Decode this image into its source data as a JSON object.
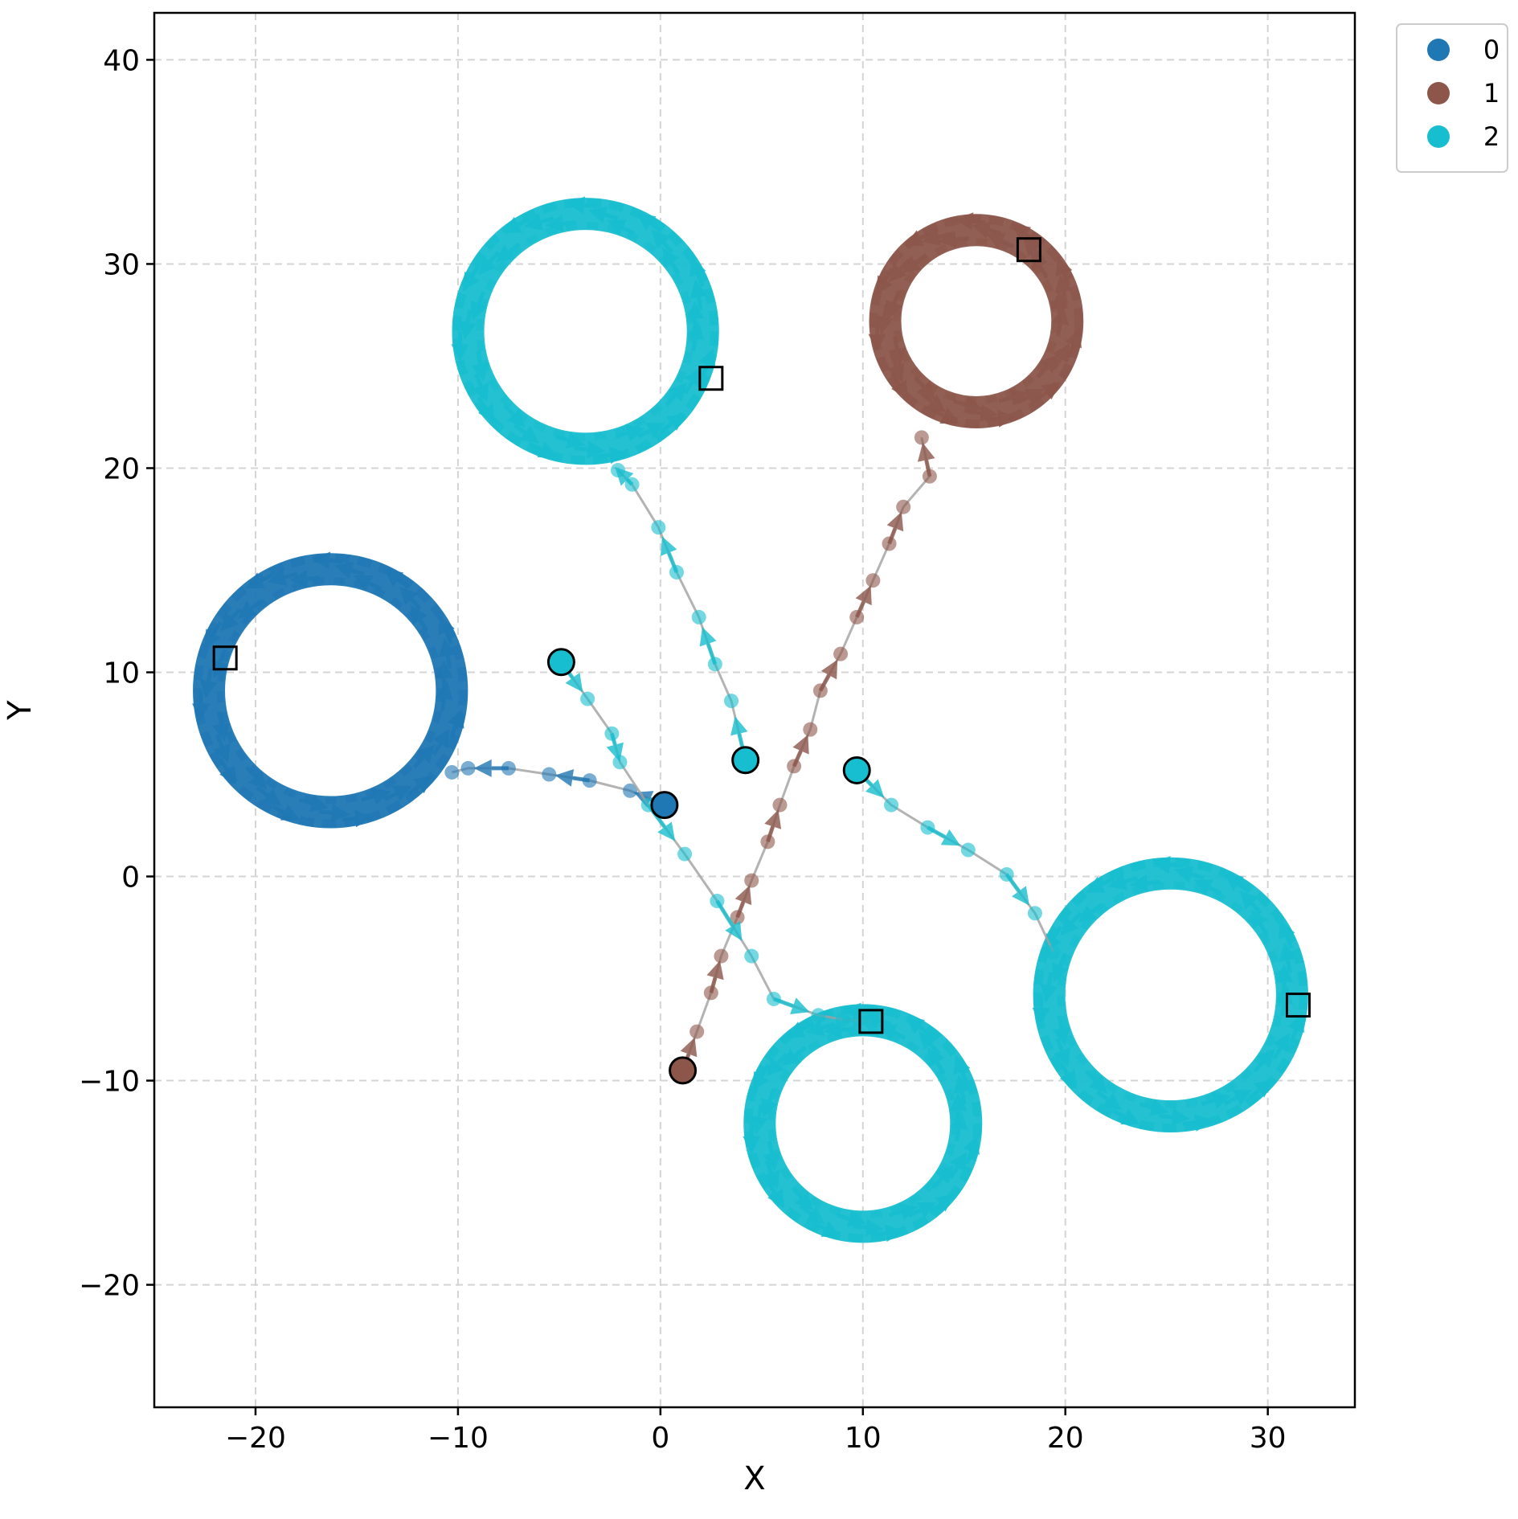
{
  "chart_data": {
    "type": "scatter",
    "xlabel": "X",
    "ylabel": "Y",
    "xlim": [
      -25,
      34.3
    ],
    "ylim": [
      -26,
      42.3
    ],
    "xticks": [
      -20,
      -10,
      0,
      10,
      20,
      30
    ],
    "yticks": [
      -20,
      -10,
      0,
      10,
      20,
      30,
      40
    ],
    "xtick_labels": [
      "−20",
      "−10",
      "0",
      "10",
      "20",
      "30"
    ],
    "ytick_labels": [
      "−20",
      "−10",
      "0",
      "10",
      "20",
      "30",
      "40"
    ],
    "grid": true,
    "legend_position": "outside-top-right",
    "legend": [
      {
        "label": "0",
        "color": "#1f77b4"
      },
      {
        "label": "1",
        "color": "#8c564b"
      },
      {
        "label": "2",
        "color": "#17becf"
      }
    ],
    "orbits": [
      {
        "group": 0,
        "center": [
          -16.3,
          9.1
        ],
        "radius": 6.0
      },
      {
        "group": 1,
        "center": [
          15.6,
          27.2
        ],
        "radius": 4.5
      },
      {
        "group": 2,
        "center": [
          -3.7,
          26.7
        ],
        "radius": 5.8
      },
      {
        "group": 2,
        "center": [
          25.2,
          -5.8
        ],
        "radius": 6.0
      },
      {
        "group": 2,
        "center": [
          10.0,
          -12.1
        ],
        "radius": 5.1
      }
    ],
    "trajectories": [
      {
        "group": 0,
        "start": [
          0.2,
          3.5
        ],
        "end": [
          -21.5,
          10.7
        ],
        "points": [
          [
            0.2,
            3.5
          ],
          [
            -1.5,
            4.2
          ],
          [
            -3.5,
            4.7
          ],
          [
            -5.5,
            5.0
          ],
          [
            -7.5,
            5.3
          ],
          [
            -9.5,
            5.3
          ],
          [
            -10.3,
            5.1
          ]
        ]
      },
      {
        "group": 1,
        "start": [
          1.1,
          -9.5
        ],
        "end": [
          18.2,
          30.7
        ],
        "points": [
          [
            1.1,
            -9.5
          ],
          [
            1.8,
            -7.6
          ],
          [
            2.5,
            -5.7
          ],
          [
            3.0,
            -3.9
          ],
          [
            3.8,
            -2.0
          ],
          [
            4.5,
            -0.2
          ],
          [
            5.3,
            1.7
          ],
          [
            5.9,
            3.5
          ],
          [
            6.6,
            5.4
          ],
          [
            7.4,
            7.2
          ],
          [
            7.9,
            9.1
          ],
          [
            8.9,
            10.9
          ],
          [
            9.7,
            12.7
          ],
          [
            10.5,
            14.5
          ],
          [
            11.3,
            16.3
          ],
          [
            12.0,
            18.1
          ],
          [
            13.3,
            19.6
          ],
          [
            12.9,
            21.5
          ]
        ]
      },
      {
        "group": 2,
        "start": [
          -4.9,
          10.5
        ],
        "end": [
          10.4,
          -7.1
        ],
        "points": [
          [
            -4.9,
            10.5
          ],
          [
            -3.6,
            8.7
          ],
          [
            -2.4,
            7.0
          ],
          [
            -2.0,
            5.6
          ],
          [
            -0.6,
            3.5
          ],
          [
            1.2,
            1.1
          ],
          [
            2.8,
            -1.2
          ],
          [
            4.5,
            -3.9
          ],
          [
            5.6,
            -6.0
          ],
          [
            7.8,
            -6.8
          ],
          [
            9.0,
            -7.0
          ],
          [
            10.4,
            -7.1
          ]
        ]
      },
      {
        "group": 2,
        "start": [
          4.2,
          5.7
        ],
        "end": [
          2.5,
          24.4
        ],
        "points": [
          [
            4.2,
            5.7
          ],
          [
            3.5,
            8.6
          ],
          [
            2.7,
            10.4
          ],
          [
            1.9,
            12.7
          ],
          [
            0.8,
            14.9
          ],
          [
            -0.1,
            17.1
          ],
          [
            -1.4,
            19.2
          ],
          [
            -2.1,
            19.9
          ]
        ]
      },
      {
        "group": 2,
        "start": [
          9.7,
          5.2
        ],
        "end": [
          31.5,
          -6.3
        ],
        "points": [
          [
            9.7,
            5.2
          ],
          [
            11.4,
            3.5
          ],
          [
            13.2,
            2.4
          ],
          [
            15.2,
            1.3
          ],
          [
            17.1,
            0.1
          ],
          [
            18.5,
            -1.8
          ],
          [
            19.4,
            -3.7
          ]
        ]
      }
    ]
  }
}
